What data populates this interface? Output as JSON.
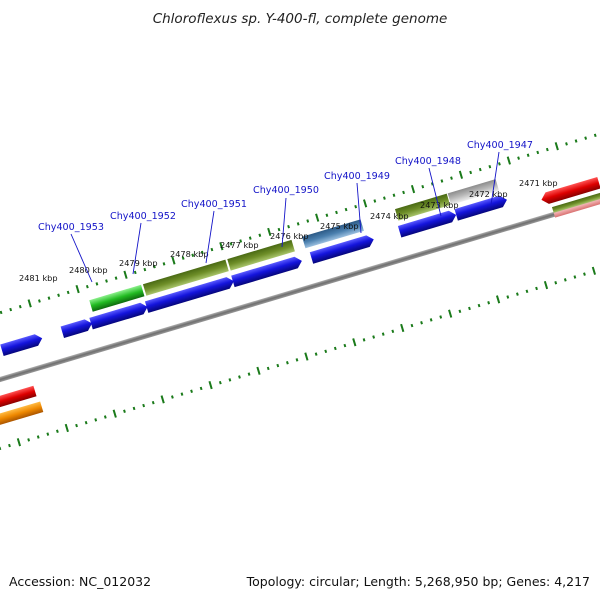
{
  "title": "Chloroflexus sp. Y-400-fl, complete genome",
  "footer": {
    "accession": "Accession: NC_012032",
    "topology": "Topology: circular; Length: 5,268,950 bp; Genes: 4,217"
  },
  "scale": {
    "unit": "kbp",
    "labels": [
      {
        "kbp": 2481,
        "text": "2481 kbp"
      },
      {
        "kbp": 2480,
        "text": "2480 kbp"
      },
      {
        "kbp": 2479,
        "text": "2479 kbp"
      },
      {
        "kbp": 2478,
        "text": "2478 kbp"
      },
      {
        "kbp": 2477,
        "text": "2477 kbp"
      },
      {
        "kbp": 2476,
        "text": "2476 kbp"
      },
      {
        "kbp": 2475,
        "text": "2475 kbp"
      },
      {
        "kbp": 2474,
        "text": "2474 kbp"
      },
      {
        "kbp": 2473,
        "text": "2473 kbp"
      },
      {
        "kbp": 2472,
        "text": "2472 kbp"
      },
      {
        "kbp": 2471,
        "text": "2471 kbp"
      }
    ]
  },
  "gene_labels": [
    {
      "id": "Chy400_1953"
    },
    {
      "id": "Chy400_1952"
    },
    {
      "id": "Chy400_1951"
    },
    {
      "id": "Chy400_1950"
    },
    {
      "id": "Chy400_1949"
    },
    {
      "id": "Chy400_1948"
    },
    {
      "id": "Chy400_1947"
    }
  ],
  "colors": {
    "cds": "#1414dc",
    "gene_green": "#22bb22",
    "gene_olive": "#6e8e28",
    "gene_steel": "#4a7fae",
    "gene_grey": "#b8b8b8",
    "gene_red": "#dd0000",
    "gene_orange": "#ee8800",
    "gene_pink": "#e89090",
    "backbone": "#777777",
    "ticks": "#1a7a1a",
    "label_blue": "#1414c8"
  }
}
